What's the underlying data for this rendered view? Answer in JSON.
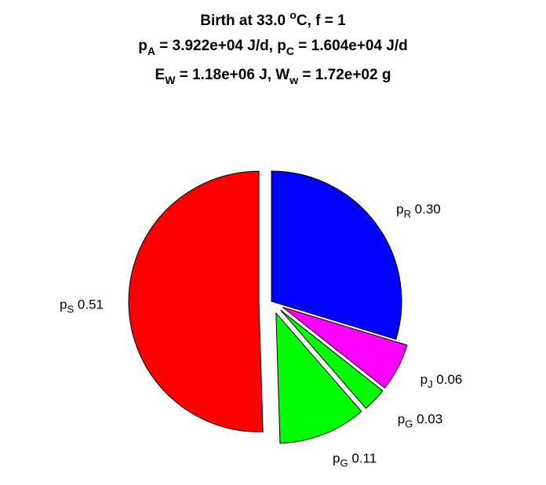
{
  "chart_data": {
    "type": "pie",
    "title": {
      "line1": {
        "main": "Birth at 33.0 ",
        "sup": "o",
        "tail": "C, f = 1"
      },
      "line2": {
        "a_main": "p",
        "a_sub": "A",
        "a_val": " = 3.922e+04 J/d, ",
        "c_main": "p",
        "c_sub": "C",
        "c_val": " = 1.604e+04 J/d"
      },
      "line3": {
        "e_main": "E",
        "e_sub": "W",
        "e_val": " = 1.18e+06 J, ",
        "w_main": "W",
        "w_sub": "w",
        "w_val": " = 1.72e+02 g"
      }
    },
    "slices": [
      {
        "symbol": "p",
        "sub": "R",
        "label": "0.30",
        "value": 0.3,
        "color": "#0000ff",
        "exploded": false
      },
      {
        "symbol": "p",
        "sub": "J",
        "label": "0.06",
        "value": 0.06,
        "color": "#ff00ff",
        "exploded": true
      },
      {
        "symbol": "p",
        "sub": "G",
        "label": "0.03",
        "value": 0.03,
        "color": "#00ff00",
        "exploded": true
      },
      {
        "symbol": "p",
        "sub": "G",
        "label": "0.11",
        "value": 0.11,
        "color": "#00ff00",
        "exploded": true
      },
      {
        "symbol": "p",
        "sub": "S",
        "label": "0.51",
        "value": 0.51,
        "color": "#ff0000",
        "exploded": true
      }
    ]
  }
}
